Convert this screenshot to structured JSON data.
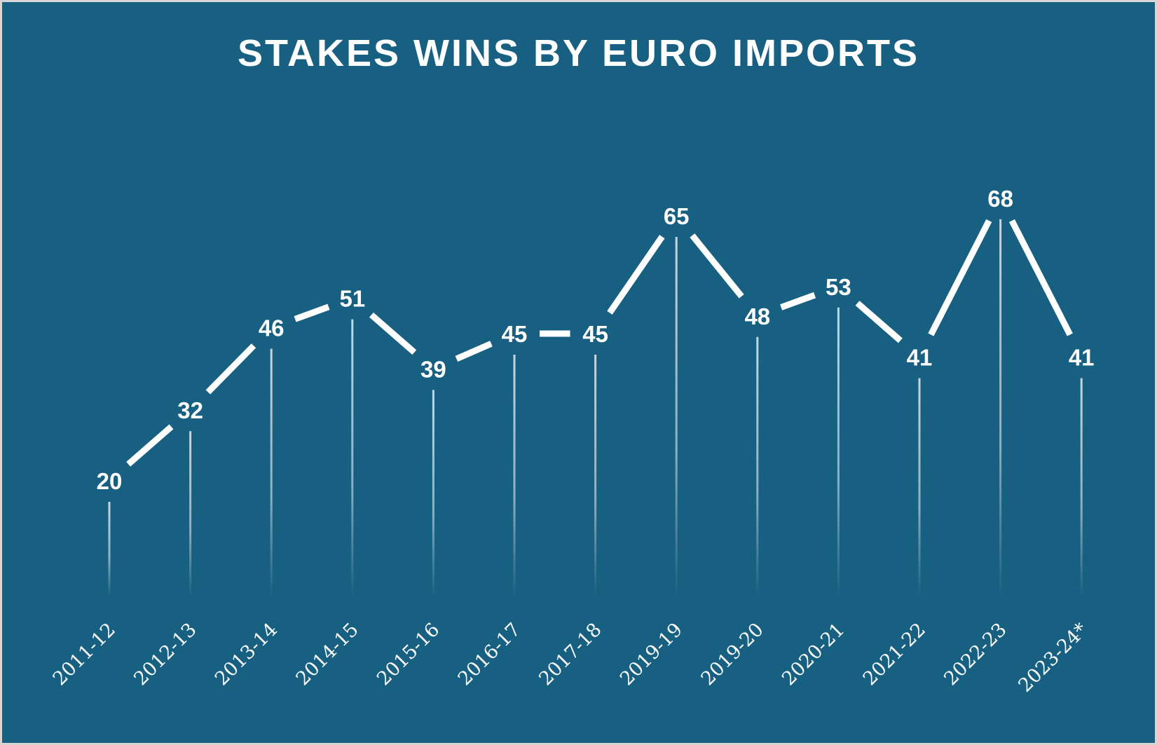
{
  "chart_data": {
    "type": "line",
    "title": "STAKES WINS BY EURO IMPORTS",
    "categories": [
      "2011-12",
      "2012-13",
      "2013-14",
      "2014-15",
      "2015-16",
      "2016-17",
      "2017-18",
      "2019-19",
      "2019-20",
      "2020-21",
      "2021-22",
      "2022-23",
      "2023-24*"
    ],
    "values": [
      20,
      32,
      46,
      51,
      39,
      45,
      45,
      65,
      48,
      53,
      41,
      68,
      41
    ],
    "xlabel": "",
    "ylabel": "",
    "grid": false,
    "data_labels": true,
    "colors": {
      "background": "#186082",
      "line": "#ffffff",
      "text": "#ffffff"
    }
  }
}
